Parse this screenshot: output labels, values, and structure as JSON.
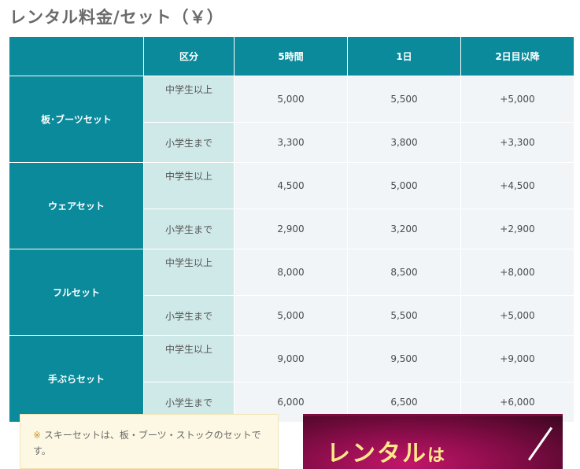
{
  "title": "レンタル料金/セット（￥）",
  "table": {
    "headers": [
      "",
      "区分",
      "5時間",
      "1日",
      "2日目以降"
    ],
    "groups": [
      {
        "name": "板･ブーツセット",
        "rows": [
          {
            "category": "中学生以上",
            "five_hours": "5,000",
            "one_day": "5,500",
            "extra_day": "+5,000"
          },
          {
            "category": "小学生まで",
            "five_hours": "3,300",
            "one_day": "3,800",
            "extra_day": "+3,300"
          }
        ]
      },
      {
        "name": "ウェアセット",
        "rows": [
          {
            "category": "中学生以上",
            "five_hours": "4,500",
            "one_day": "5,000",
            "extra_day": "+4,500"
          },
          {
            "category": "小学生まで",
            "five_hours": "2,900",
            "one_day": "3,200",
            "extra_day": "+2,900"
          }
        ]
      },
      {
        "name": "フルセット",
        "rows": [
          {
            "category": "中学生以上",
            "five_hours": "8,000",
            "one_day": "8,500",
            "extra_day": "+8,000"
          },
          {
            "category": "小学生まで",
            "five_hours": "5,000",
            "one_day": "5,500",
            "extra_day": "+5,000"
          }
        ]
      },
      {
        "name": "手ぶらセット",
        "rows": [
          {
            "category": "中学生以上",
            "five_hours": "9,000",
            "one_day": "9,500",
            "extra_day": "+9,000"
          },
          {
            "category": "小学生まで",
            "five_hours": "6,000",
            "one_day": "6,500",
            "extra_day": "+6,000"
          }
        ]
      }
    ]
  },
  "note": {
    "mark": "※",
    "text": " スキーセットは、板・ブーツ・ストックのセットです。"
  },
  "banner": {
    "text": "レンタル",
    "suffix": "は"
  },
  "colors": {
    "header_teal": "#0a8a9b",
    "category_bg": "#cfe9e8",
    "price_bg": "#f1f5f8",
    "note_bg": "#fdf8e3",
    "banner_magenta": "#8a0d4a"
  }
}
